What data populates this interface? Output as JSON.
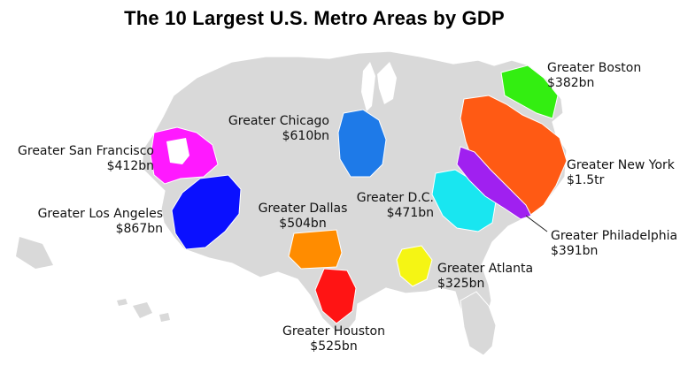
{
  "title": "The 10 Largest U.S. Metro Areas by GDP",
  "metros": [
    {
      "name": "Greater San Francisco",
      "gdp": "$412bn",
      "color": "#ff19ff"
    },
    {
      "name": "Greater Los Angeles",
      "gdp": "$867bn",
      "color": "#0a10ff"
    },
    {
      "name": "Greater Chicago",
      "gdp": "$610bn",
      "color": "#1e7ae8"
    },
    {
      "name": "Greater Dallas",
      "gdp": "$504bn",
      "color": "#ff8c00"
    },
    {
      "name": "Greater Houston",
      "gdp": "$525bn",
      "color": "#ff1414"
    },
    {
      "name": "Greater D.C.",
      "gdp": "$471bn",
      "color": "#19e6f0"
    },
    {
      "name": "Greater Atlanta",
      "gdp": "$325bn",
      "color": "#f5f514"
    },
    {
      "name": "Greater Boston",
      "gdp": "$382bn",
      "color": "#33ee11"
    },
    {
      "name": "Greater New York",
      "gdp": "$1.5tr",
      "color": "#ff5a14"
    },
    {
      "name": "Greater Philadelphia",
      "gdp": "$391bn",
      "color": "#a020f0"
    }
  ]
}
